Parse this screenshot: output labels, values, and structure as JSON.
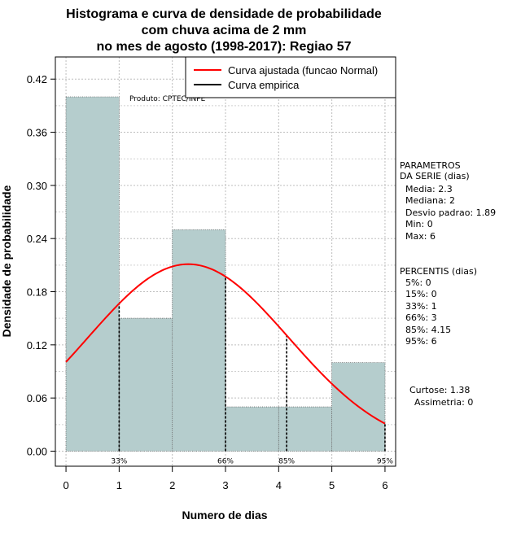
{
  "chart_data": {
    "type": "bar",
    "title_lines": [
      "Histograma e curva de densidade de probabilidade",
      "com chuva acima de 2 mm",
      "no mes de agosto (1998-2017): Regiao 57"
    ],
    "xlabel": "Numero de dias",
    "ylabel": "Densidade de probabilidade",
    "xlim": [
      -0.2,
      6.2
    ],
    "ylim": [
      -0.017,
      0.445
    ],
    "x_ticks": [
      "0",
      "1",
      "2",
      "3",
      "4",
      "5",
      "6"
    ],
    "y_ticks": [
      "0.00",
      "0.06",
      "0.12",
      "0.18",
      "0.24",
      "0.30",
      "0.36",
      "0.42"
    ],
    "histogram": [
      {
        "from": 0,
        "to": 1,
        "density": 0.4
      },
      {
        "from": 1,
        "to": 2,
        "density": 0.15
      },
      {
        "from": 2,
        "to": 3,
        "density": 0.25
      },
      {
        "from": 3,
        "to": 4,
        "density": 0.05
      },
      {
        "from": 4,
        "to": 5,
        "density": 0.05
      },
      {
        "from": 5,
        "to": 6,
        "density": 0.1
      }
    ],
    "bar_color": "#b5cdcd",
    "curve": {
      "name": "Curva ajustada (funcao Normal)",
      "mean": 2.3,
      "sd": 1.89,
      "color": "#ff0000"
    },
    "empirical": {
      "name": "Curva empirica",
      "color": "#000000"
    },
    "percentile_lines": [
      {
        "label": "33%",
        "x": 1
      },
      {
        "label": "66%",
        "x": 3
      },
      {
        "label": "85%",
        "x": 4.15
      },
      {
        "label": "95%",
        "x": 6
      }
    ],
    "product_label": "Produto: CPTEC/INPE",
    "grid": true,
    "legend_position": "top-right"
  },
  "side_panel": {
    "params_title_1": "PARAMETROS",
    "params_title_2": "DA SERIE (dias)",
    "params": [
      "Media: 2.3",
      "Mediana: 2",
      "Desvio padrao: 1.89",
      "Min: 0",
      "Max: 6"
    ],
    "percentiles_title": "PERCENTIS (dias)",
    "percentiles": [
      "5%: 0",
      "15%: 0",
      "33%: 1",
      "66%: 3",
      "85%: 4.15",
      "95%: 6"
    ],
    "curtose": "Curtose: 1.38",
    "assimetria": "Assimetria: 0"
  }
}
